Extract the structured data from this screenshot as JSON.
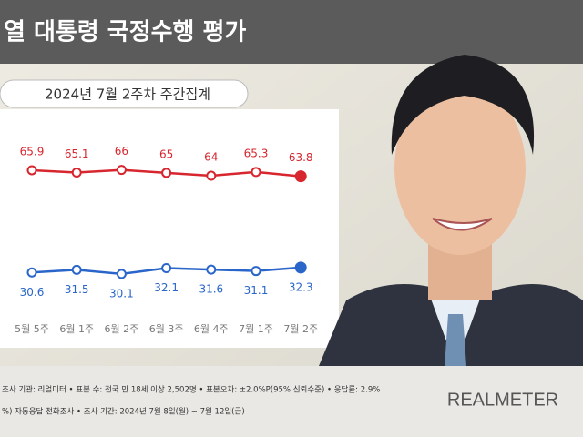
{
  "chart_data": {
    "type": "line",
    "title": "열 대통령 국정수행 평가",
    "subtitle": "2024년 7월 2주차 주간집계",
    "categories": [
      "5월 5주",
      "6월 1주",
      "6월 2주",
      "6월 3주",
      "6월 4주",
      "7월 1주",
      "7월 2주"
    ],
    "series": [
      {
        "color": "#d7262e",
        "values": [
          65.9,
          65.1,
          66.0,
          65.0,
          64.0,
          65.3,
          63.8
        ]
      },
      {
        "color": "#2a66c9",
        "values": [
          30.6,
          31.5,
          30.1,
          32.1,
          31.6,
          31.1,
          32.3
        ]
      }
    ],
    "ylim": [
      20,
      75
    ],
    "footer": [
      "조사 기관: 리얼미터 • 표본 수: 전국 만 18세 이상 2,502명 • 표본오차: ±2.0%P(95% 신뢰수준) • 응답률: 2.9%",
      "%) 자동응답 전화조사 • 조사 기간: 2024년 7월 8일(월) ~ 7월 12일(금)"
    ],
    "brand": "REALMETER"
  }
}
